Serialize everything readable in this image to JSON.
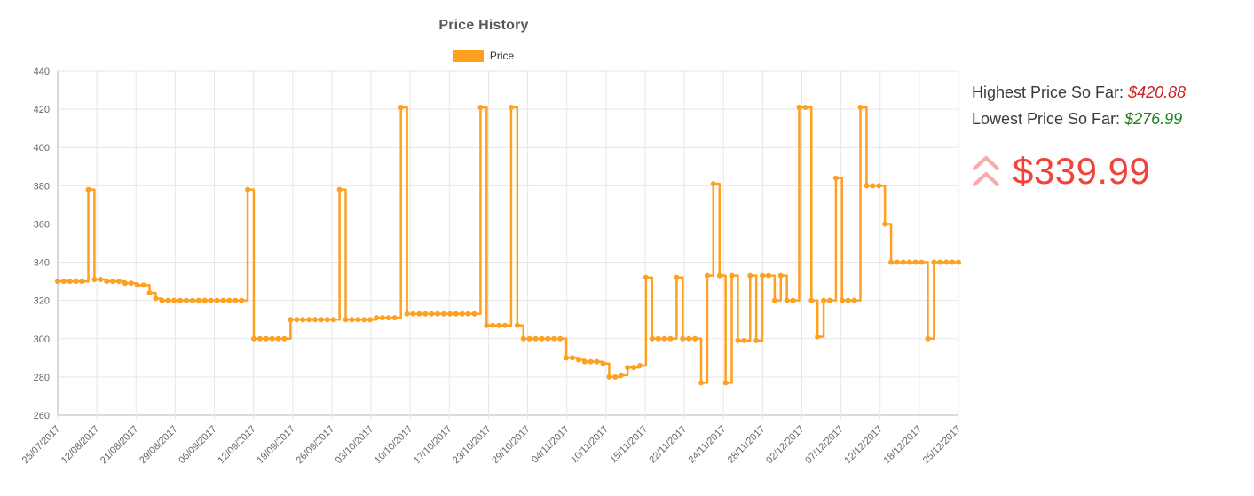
{
  "header": {
    "title": "Price History"
  },
  "legend": {
    "label": "Price",
    "color": "#ffa021"
  },
  "summary": {
    "highest_label": "Highest Price So Far:",
    "highest_value": "$420.88",
    "lowest_label": "Lowest Price So Far:",
    "lowest_value": "$276.99",
    "current_price": "$339.99",
    "accent_red": "#f2423c",
    "accent_green": "#1e7e1e",
    "chevron_color": "#f8a9a9"
  },
  "chart_data": {
    "type": "line",
    "step": true,
    "title": "Price History",
    "legend_position": "top",
    "grid": true,
    "line_color": "#ffa021",
    "ylim": [
      260,
      440
    ],
    "y_ticks": [
      260,
      280,
      300,
      320,
      340,
      360,
      380,
      400,
      420,
      440
    ],
    "x_tick_labels": [
      "25/07/2017",
      "12/08/2017",
      "21/08/2017",
      "29/08/2017",
      "06/09/2017",
      "12/09/2017",
      "19/09/2017",
      "26/09/2017",
      "03/10/2017",
      "10/10/2017",
      "17/10/2017",
      "23/10/2017",
      "29/10/2017",
      "04/11/2017",
      "10/11/2017",
      "15/11/2017",
      "22/11/2017",
      "24/11/2017",
      "28/11/2017",
      "02/12/2017",
      "07/12/2017",
      "12/12/2017",
      "18/12/2017",
      "25/12/2017"
    ],
    "series": [
      {
        "name": "Price",
        "color": "#ffa021",
        "values": [
          330,
          330,
          330,
          330,
          330,
          378,
          331,
          331,
          330,
          330,
          330,
          329,
          329,
          328,
          328,
          324,
          321,
          320,
          320,
          320,
          320,
          320,
          320,
          320,
          320,
          320,
          320,
          320,
          320,
          320,
          320,
          378,
          300,
          300,
          300,
          300,
          300,
          300,
          310,
          310,
          310,
          310,
          310,
          310,
          310,
          310,
          378,
          310,
          310,
          310,
          310,
          310,
          311,
          311,
          311,
          311,
          421,
          313,
          313,
          313,
          313,
          313,
          313,
          313,
          313,
          313,
          313,
          313,
          313,
          421,
          307,
          307,
          307,
          307,
          421,
          307,
          300,
          300,
          300,
          300,
          300,
          300,
          300,
          290,
          290,
          289,
          288,
          288,
          288,
          287,
          280,
          280,
          281,
          285,
          285,
          286,
          332,
          300,
          300,
          300,
          300,
          332,
          300,
          300,
          300,
          277,
          333,
          381,
          333,
          277,
          333,
          299,
          299,
          333,
          299,
          333,
          333,
          320,
          333,
          320,
          320,
          421,
          421,
          320,
          301,
          320,
          320,
          384,
          320,
          320,
          320,
          421,
          380,
          380,
          380,
          360,
          340,
          340,
          340,
          340,
          340,
          340,
          300,
          340,
          340,
          340,
          340,
          340
        ]
      }
    ]
  }
}
